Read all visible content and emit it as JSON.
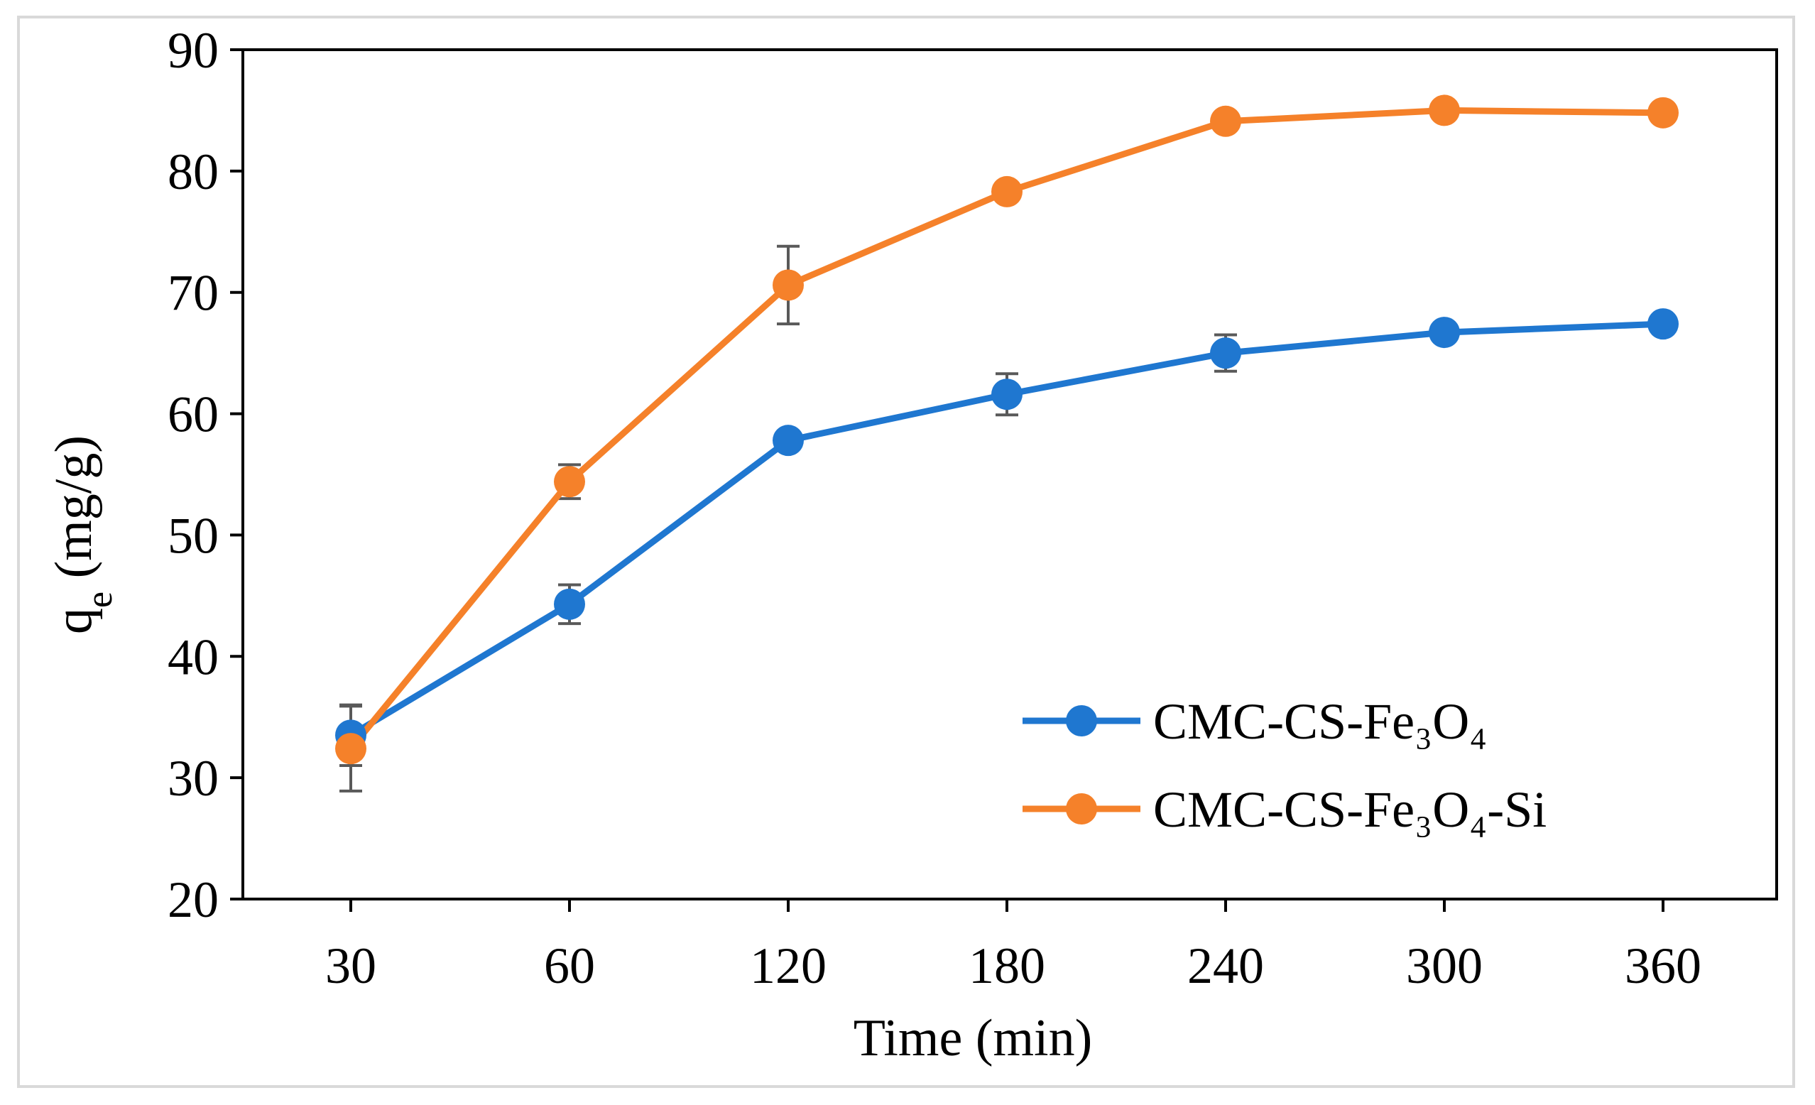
{
  "chart_data": {
    "type": "line",
    "title": "",
    "xlabel": "Time (min)",
    "ylabel_main": "q",
    "ylabel_sub": "e",
    "ylabel_units": " (mg/g)",
    "categories": [
      "30",
      "60",
      "120",
      "180",
      "240",
      "300",
      "360"
    ],
    "ylim": [
      20,
      90
    ],
    "yticks": [
      20,
      30,
      40,
      50,
      60,
      70,
      80,
      90
    ],
    "grid": false,
    "legend_position": "bottom-right",
    "series": [
      {
        "name": "CMC-CS-Fe₃O₄",
        "color": "#1f77d0",
        "values": [
          33.5,
          44.3,
          57.8,
          61.6,
          65.0,
          66.7,
          67.4
        ],
        "errors": [
          2.5,
          1.6,
          0.0,
          1.7,
          1.5,
          0.0,
          0.0
        ]
      },
      {
        "name": "CMC-CS-Fe₃O₄-Si",
        "color": "#f5812a",
        "values": [
          32.4,
          54.4,
          70.6,
          78.3,
          84.1,
          85.0,
          84.8
        ],
        "errors": [
          3.5,
          1.4,
          3.2,
          0.0,
          0.0,
          0.0,
          0.0
        ]
      }
    ]
  }
}
